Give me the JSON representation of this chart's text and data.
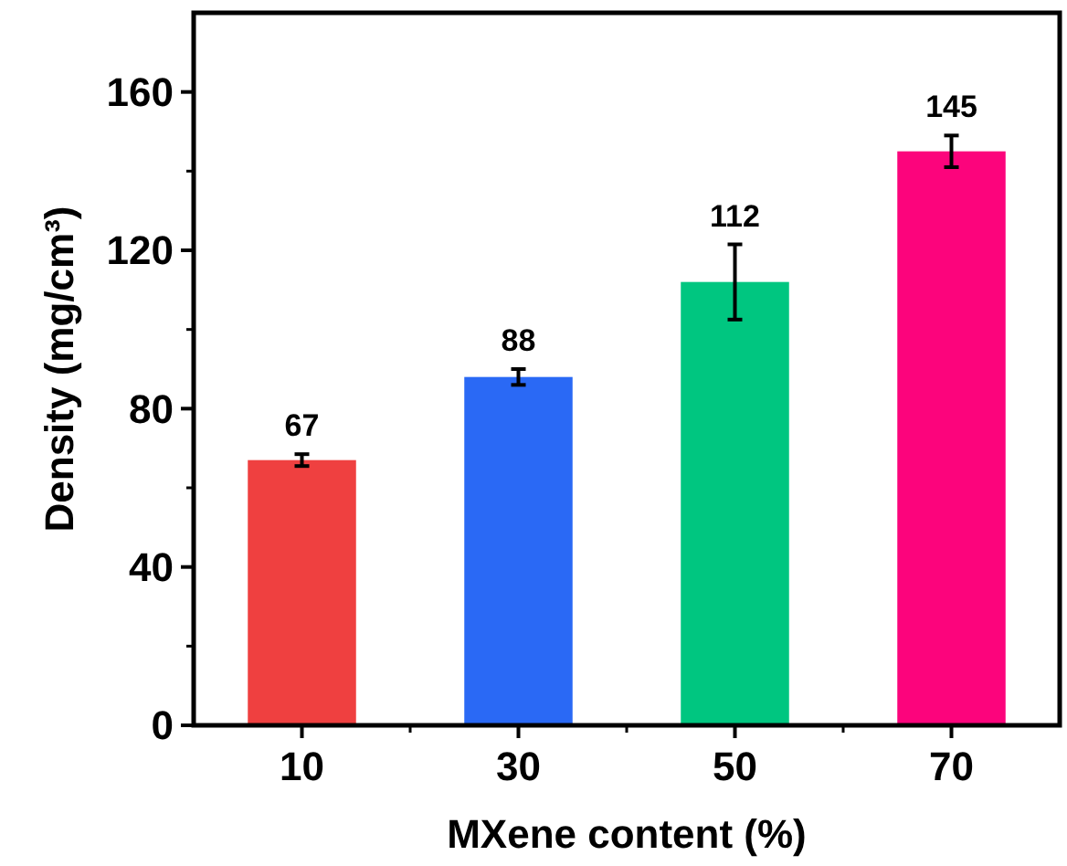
{
  "chart_data": {
    "type": "bar",
    "xlabel": "MXene content (%)",
    "ylabel": "Density (mg/cm³)",
    "categories": [
      "10",
      "30",
      "50",
      "70"
    ],
    "values": [
      67,
      88,
      112,
      145
    ],
    "colors": [
      "#ef4040",
      "#2a69f5",
      "#00c680",
      "#fc047c"
    ],
    "errors": [
      1.5,
      2,
      9.5,
      4
    ],
    "data_labels": true,
    "ylim": [
      0,
      180
    ],
    "yticks": [
      0,
      40,
      80,
      120,
      160
    ]
  }
}
